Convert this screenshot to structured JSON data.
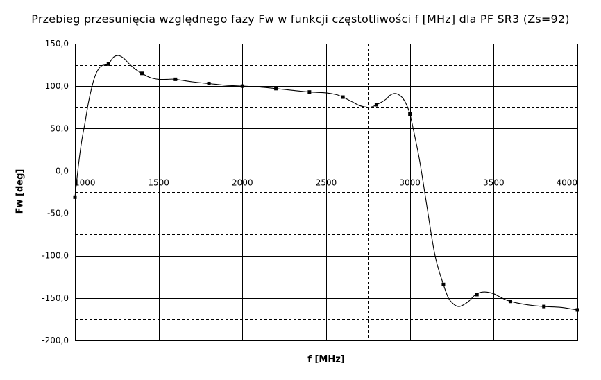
{
  "chart_data": {
    "type": "line",
    "title": "Przebieg przesunięcia względnego fazy Fw w funkcji częstotliwości f [MHz] dla PF SR3 (Zs=92)",
    "xlabel": "f [MHz]",
    "ylabel": "Fw [deg]",
    "xlim": [
      1000,
      4000
    ],
    "ylim": [
      -200,
      150
    ],
    "x_ticks": [
      1000,
      1500,
      2000,
      2500,
      3000,
      3500,
      4000
    ],
    "x_tick_labels": [
      "1000",
      "1500",
      "2000",
      "2500",
      "3000",
      "3500",
      "4000"
    ],
    "y_ticks": [
      150,
      100,
      50,
      0,
      -50,
      -100,
      -150,
      -200
    ],
    "y_tick_labels": [
      "150,0",
      "100,0",
      "50,0",
      "0,0",
      "-50,0",
      "-100,0",
      "-150,0",
      "-200,0"
    ],
    "minor_x_gridlines": [
      1250,
      1750,
      2250,
      2750,
      3250,
      3750
    ],
    "minor_y_gridlines": [
      125,
      75,
      25,
      -25,
      -75,
      -125,
      -175
    ],
    "grid": true,
    "legend": "none",
    "series": [
      {
        "markers": {
          "x": [
            1000,
            1200,
            1400,
            1600,
            1800,
            2000,
            2200,
            2400,
            2600,
            2800,
            3000,
            3200,
            3400,
            3600,
            3800,
            4000
          ],
          "y": [
            -31,
            126,
            115,
            108,
            103,
            100,
            97,
            93,
            87,
            78,
            67,
            -134,
            -146,
            -154,
            -160,
            -164
          ]
        },
        "curve": {
          "x": [
            1000,
            1020,
            1040,
            1060,
            1080,
            1100,
            1120,
            1140,
            1160,
            1180,
            1200,
            1230,
            1260,
            1290,
            1320,
            1360,
            1400,
            1450,
            1500,
            1550,
            1600,
            1700,
            1800,
            1900,
            2000,
            2100,
            2200,
            2300,
            2400,
            2500,
            2560,
            2600,
            2650,
            2700,
            2750,
            2780,
            2800,
            2830,
            2860,
            2880,
            2900,
            2920,
            2940,
            2960,
            2980,
            3000,
            3030,
            3060,
            3100,
            3150,
            3200,
            3230,
            3260,
            3290,
            3320,
            3350,
            3380,
            3400,
            3430,
            3460,
            3500,
            3550,
            3600,
            3700,
            3800,
            3900,
            4000
          ],
          "y": [
            -31,
            5,
            35,
            57,
            80,
            98,
            112,
            120,
            124,
            125,
            126,
            134,
            136,
            133,
            127,
            120,
            115,
            110,
            108,
            108,
            108,
            105,
            103,
            101,
            100,
            99,
            97,
            95,
            93,
            92,
            90,
            87,
            82,
            77,
            75,
            76,
            78,
            81,
            85,
            89,
            91,
            91,
            89,
            85,
            78,
            67,
            40,
            10,
            -40,
            -100,
            -134,
            -150,
            -157,
            -160,
            -158,
            -154,
            -148,
            -145,
            -143,
            -143,
            -145,
            -150,
            -154,
            -158,
            -160,
            -161,
            -164
          ]
        }
      }
    ]
  }
}
